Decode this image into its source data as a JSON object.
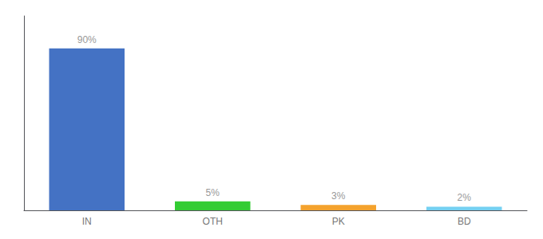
{
  "chart_data": {
    "type": "bar",
    "categories": [
      "IN",
      "OTH",
      "PK",
      "BD"
    ],
    "values": [
      90,
      5,
      3,
      2
    ],
    "value_labels": [
      "90%",
      "5%",
      "3%",
      "2%"
    ],
    "colors": [
      "#4472c4",
      "#33cc33",
      "#f4a22d",
      "#74d0f1"
    ],
    "ylim": [
      0,
      108
    ],
    "data_labels": true,
    "tick_labels": "x",
    "grid": false
  }
}
